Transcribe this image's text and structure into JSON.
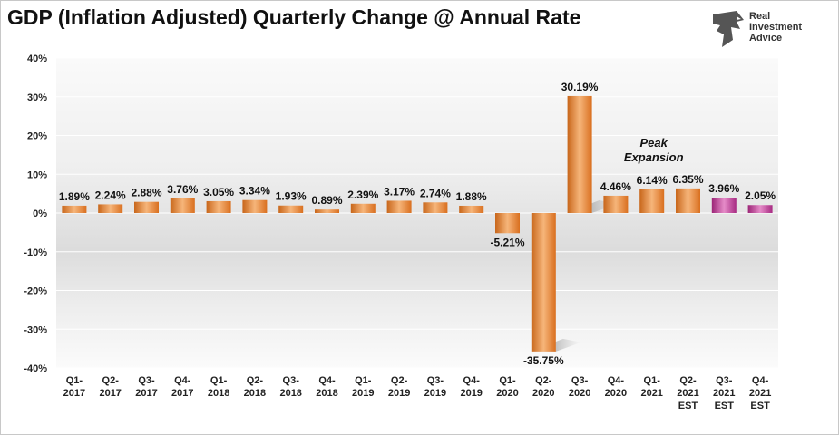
{
  "page": {
    "title": "GDP (Inflation Adjusted) Quarterly Change @ Annual Rate",
    "logo": {
      "line1": "Real",
      "line2": "Investment",
      "line3": "Advice",
      "icon": "eagle-head-icon"
    }
  },
  "chart_data": {
    "type": "bar",
    "title": "GDP (Inflation Adjusted) Quarterly Change @ Annual Rate",
    "xlabel": "",
    "ylabel": "",
    "ylim": [
      -40,
      40
    ],
    "yticks": [
      40,
      30,
      20,
      10,
      0,
      -10,
      -20,
      -30,
      -40
    ],
    "ytick_labels": [
      "40%",
      "30%",
      "20%",
      "10%",
      "0%",
      "-10%",
      "-20%",
      "-30%",
      "-40%"
    ],
    "grid": true,
    "categories": [
      [
        "Q1-",
        "2017"
      ],
      [
        "Q2-",
        "2017"
      ],
      [
        "Q3-",
        "2017"
      ],
      [
        "Q4-",
        "2017"
      ],
      [
        "Q1-",
        "2018"
      ],
      [
        "Q2-",
        "2018"
      ],
      [
        "Q3-",
        "2018"
      ],
      [
        "Q4-",
        "2018"
      ],
      [
        "Q1-",
        "2019"
      ],
      [
        "Q2-",
        "2019"
      ],
      [
        "Q3-",
        "2019"
      ],
      [
        "Q4-",
        "2019"
      ],
      [
        "Q1-",
        "2020"
      ],
      [
        "Q2-",
        "2020"
      ],
      [
        "Q3-",
        "2020"
      ],
      [
        "Q4-",
        "2020"
      ],
      [
        "Q1-",
        "2021"
      ],
      [
        "Q2-",
        "2021",
        "EST"
      ],
      [
        "Q3-",
        "2021",
        "EST"
      ],
      [
        "Q4-",
        "2021",
        "EST"
      ]
    ],
    "values": [
      1.89,
      2.24,
      2.88,
      3.76,
      3.05,
      3.34,
      1.93,
      0.89,
      2.39,
      3.17,
      2.74,
      1.88,
      -5.21,
      -35.75,
      30.19,
      4.46,
      6.14,
      6.35,
      3.96,
      2.05
    ],
    "labels": [
      "1.89%",
      "2.24%",
      "2.88%",
      "3.76%",
      "3.05%",
      "3.34%",
      "1.93%",
      "0.89%",
      "2.39%",
      "3.17%",
      "2.74%",
      "1.88%",
      "-5.21%",
      "-35.75%",
      "30.19%",
      "4.46%",
      "6.14%",
      "6.35%",
      "3.96%",
      "2.05%"
    ],
    "bar_kind": [
      "actual",
      "actual",
      "actual",
      "actual",
      "actual",
      "actual",
      "actual",
      "actual",
      "actual",
      "actual",
      "actual",
      "actual",
      "actual",
      "actual",
      "actual",
      "actual",
      "actual",
      "actual",
      "estimate",
      "estimate"
    ],
    "colors": {
      "actual": "#e8812a",
      "actual_light": "#f6b57a",
      "estimate": "#b8308f",
      "estimate_light": "#e58bc8"
    },
    "annotations": [
      {
        "text": [
          "Peak",
          "Expansion"
        ],
        "near_category": 16
      }
    ]
  }
}
